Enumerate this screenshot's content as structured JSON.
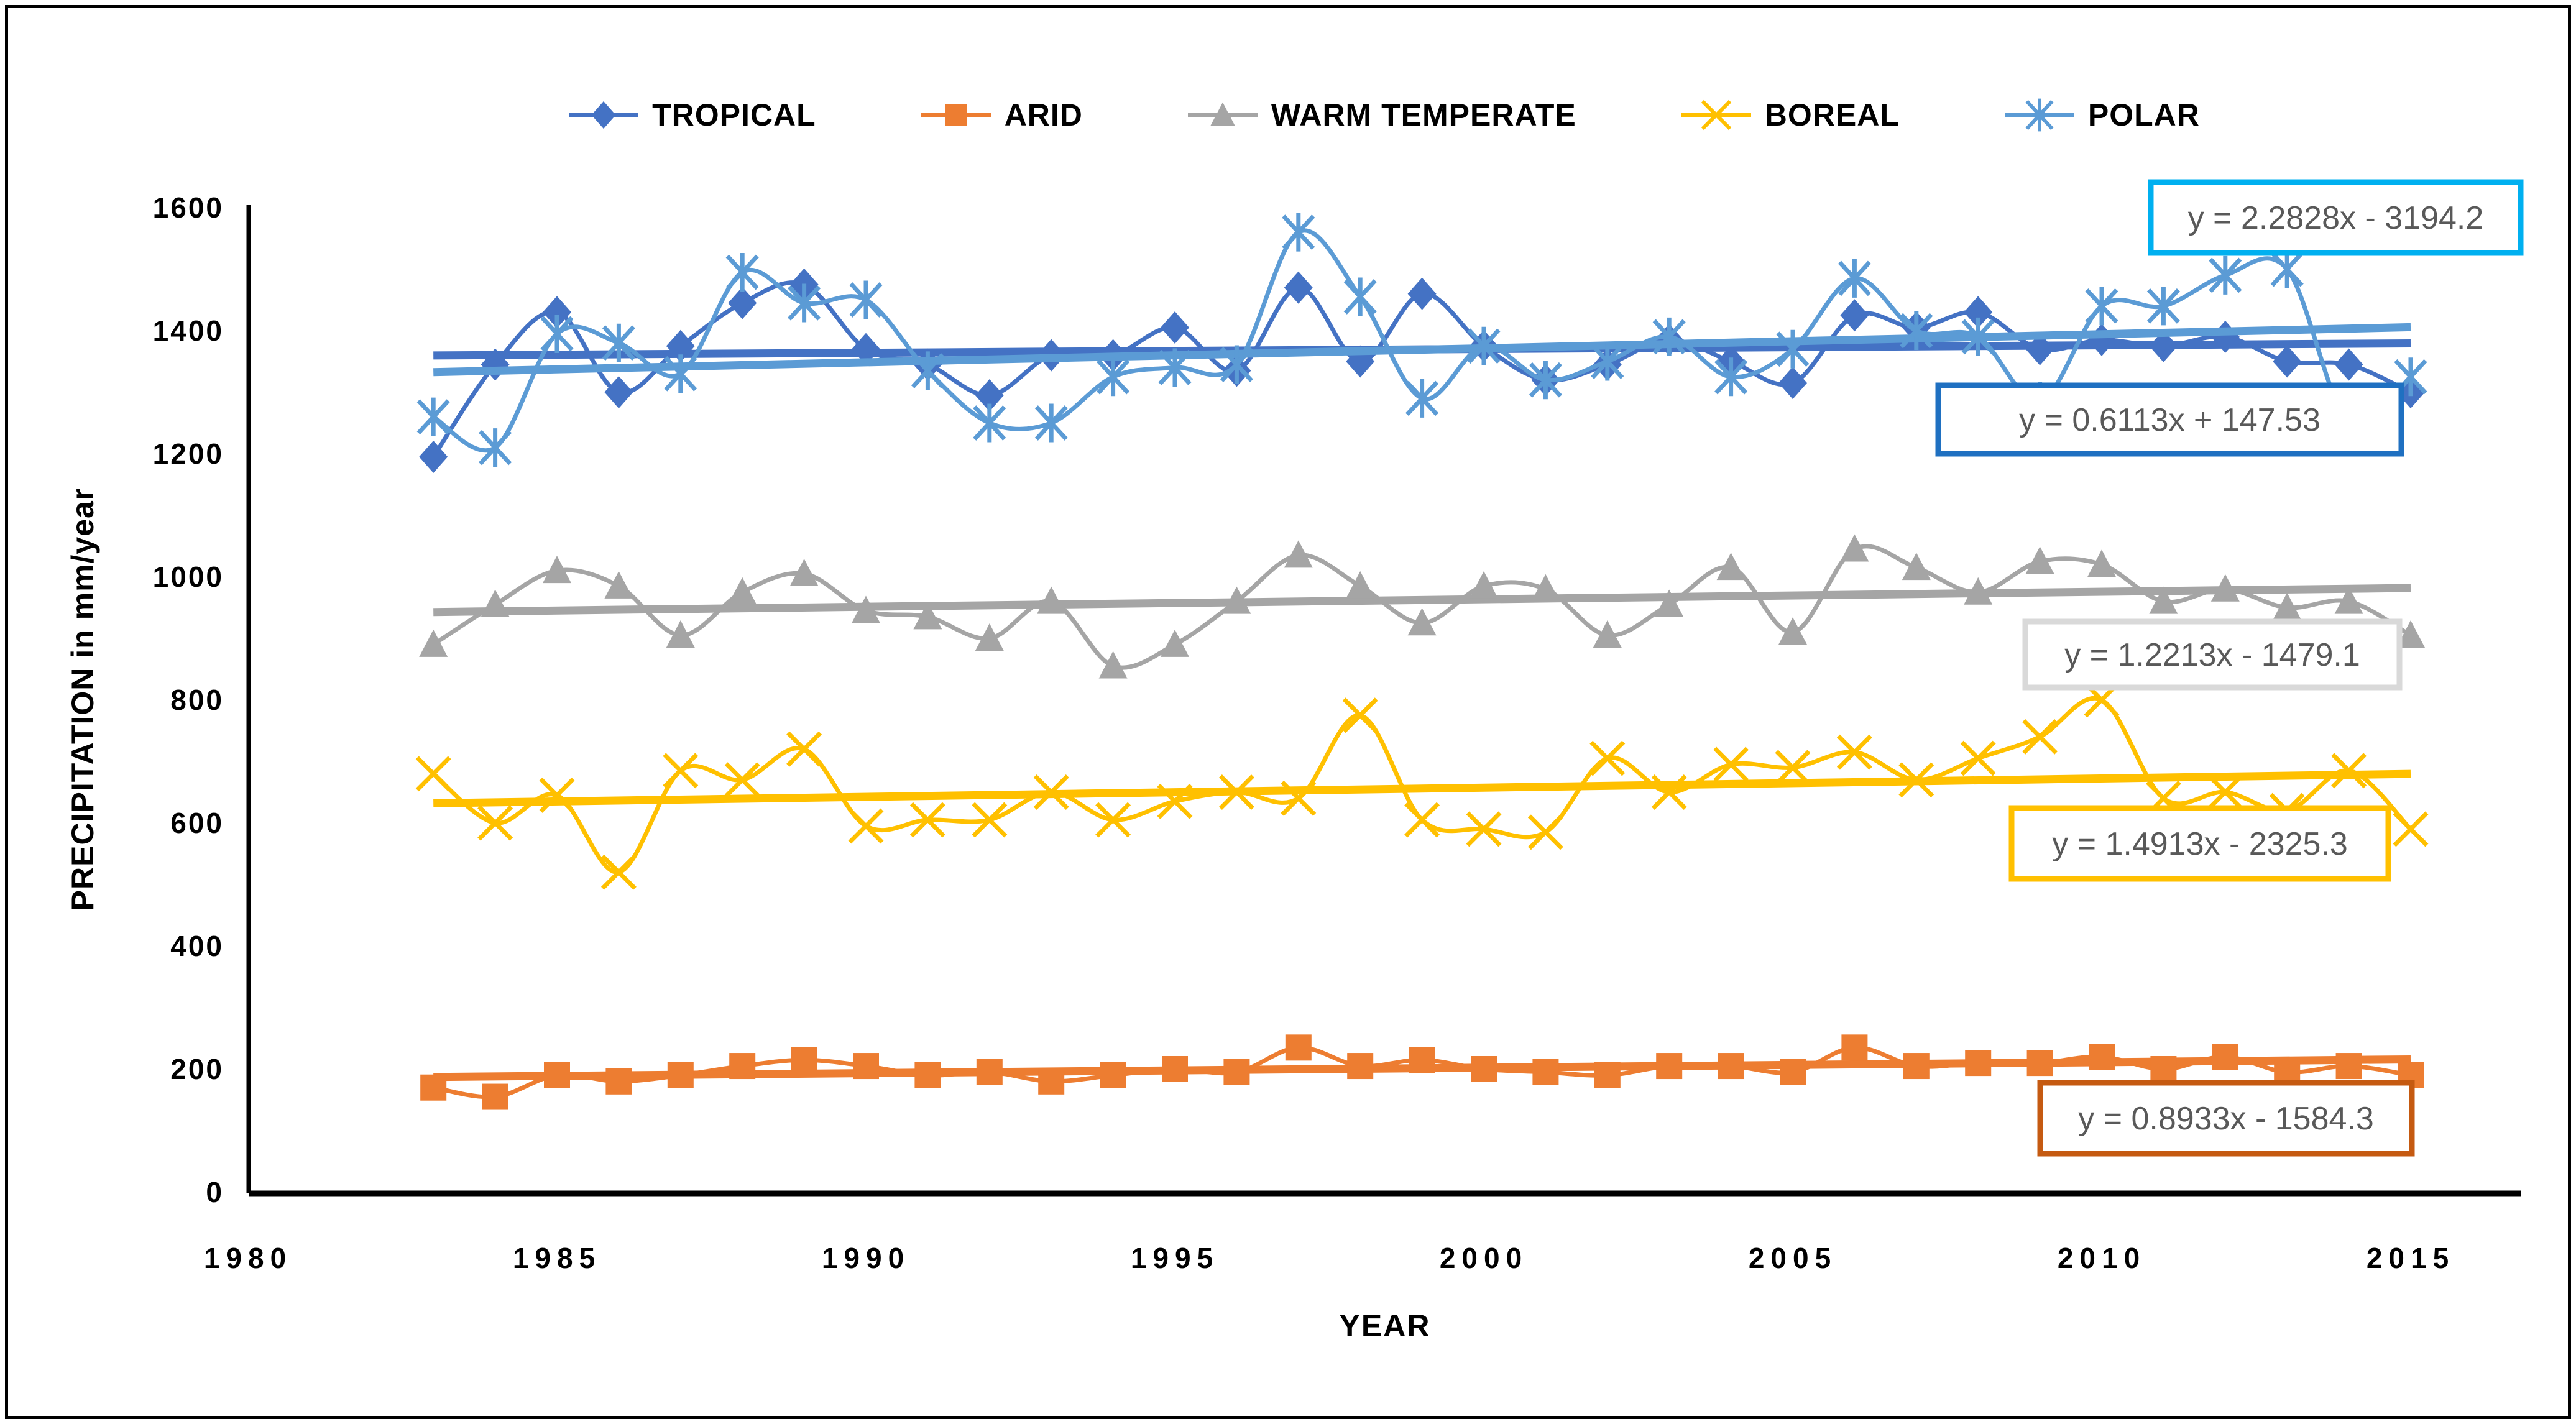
{
  "figure": {
    "background": "#ffffff",
    "border_color": "#000000"
  },
  "axes": {
    "x_title": "YEAR",
    "y_title": "PRECIPITATION in mm/year",
    "x_ticks": [
      1980,
      1985,
      1990,
      1995,
      2000,
      2005,
      2010,
      2015
    ],
    "y_ticks": [
      0,
      200,
      400,
      600,
      800,
      1000,
      1200,
      1400,
      1600
    ],
    "x_range": [
      1980,
      2015
    ],
    "y_range": [
      0,
      1600
    ],
    "grid": false,
    "legend_position": "top"
  },
  "chart_data": {
    "type": "line",
    "title": "",
    "xlabel": "YEAR",
    "ylabel": "PRECIPITATION in mm/year",
    "ylim": [
      0,
      1600
    ],
    "x": [
      1983,
      1984,
      1985,
      1986,
      1987,
      1988,
      1989,
      1990,
      1991,
      1992,
      1993,
      1994,
      1995,
      1996,
      1997,
      1998,
      1999,
      2000,
      2001,
      2002,
      2003,
      2004,
      2005,
      2006,
      2007,
      2008,
      2009,
      2010,
      2011,
      2012,
      2013,
      2014,
      2015
    ],
    "series": [
      {
        "name": "TROPICAL",
        "marker": "diamond",
        "color": "#4472C4",
        "values": [
          1195,
          1345,
          1430,
          1300,
          1375,
          1445,
          1475,
          1370,
          1345,
          1295,
          1360,
          1360,
          1405,
          1335,
          1470,
          1350,
          1460,
          1375,
          1320,
          1345,
          1385,
          1350,
          1315,
          1425,
          1405,
          1430,
          1370,
          1385,
          1375,
          1390,
          1350,
          1345,
          1300
        ],
        "trend": {
          "slope": 0.6113,
          "intercept": 147.53,
          "label": "y = 0.6113x + 147.53",
          "box_color": "#1F70C1",
          "box": [
            3118,
            620,
            745,
            110
          ]
        }
      },
      {
        "name": "ARID",
        "marker": "square",
        "color": "#ED7D31",
        "values": [
          170,
          155,
          190,
          180,
          190,
          205,
          215,
          205,
          190,
          195,
          180,
          190,
          200,
          195,
          235,
          205,
          215,
          200,
          195,
          190,
          205,
          205,
          195,
          235,
          205,
          210,
          210,
          220,
          200,
          220,
          195,
          205,
          190
        ],
        "trend": {
          "slope": 0.8933,
          "intercept": -1584.3,
          "label": "y = 0.8933x - 1584.3",
          "box_color": "#C55A11",
          "box": [
            3282,
            1742,
            598,
            114
          ]
        }
      },
      {
        "name": "WARM TEMPERATE",
        "marker": "triangle",
        "color": "#A5A5A5",
        "values": [
          890,
          955,
          1010,
          985,
          905,
          975,
          1005,
          945,
          935,
          900,
          960,
          855,
          890,
          960,
          1035,
          985,
          925,
          985,
          980,
          905,
          955,
          1015,
          910,
          1045,
          1015,
          975,
          1025,
          1020,
          960,
          980,
          950,
          960,
          905
        ],
        "trend": {
          "slope": 1.2213,
          "intercept": -1479.1,
          "label": "y = 1.2213x - 1479.1",
          "box_color": "#D9D9D9",
          "box": [
            3258,
            1000,
            602,
            106
          ]
        }
      },
      {
        "name": "BOREAL",
        "marker": "x",
        "color": "#FFC000",
        "values": [
          680,
          600,
          645,
          520,
          685,
          670,
          720,
          595,
          605,
          605,
          650,
          605,
          635,
          650,
          640,
          775,
          605,
          590,
          585,
          705,
          650,
          695,
          690,
          715,
          670,
          705,
          740,
          800,
          640,
          650,
          620,
          685,
          590
        ],
        "trend": {
          "slope": 1.4913,
          "intercept": -2325.3,
          "label": "y = 1.4913x - 2325.3",
          "box_color": "#FFC000",
          "box": [
            3236,
            1300,
            606,
            114
          ]
        }
      },
      {
        "name": "POLAR",
        "marker": "asterisk",
        "color": "#5B9BD5",
        "values": [
          1260,
          1210,
          1395,
          1380,
          1330,
          1495,
          1445,
          1450,
          1335,
          1250,
          1250,
          1325,
          1340,
          1345,
          1560,
          1455,
          1290,
          1375,
          1320,
          1350,
          1390,
          1325,
          1370,
          1485,
          1400,
          1390,
          1285,
          1440,
          1440,
          1490,
          1500,
          1250,
          1325
        ],
        "trend": {
          "slope": 2.2828,
          "intercept": -3194.2,
          "label": "y = 2.2828x - 3194.2",
          "box_color": "#00B0F0",
          "box": [
            3460,
            293,
            595,
            114
          ]
        }
      }
    ],
    "equation_text_color": "#595959"
  }
}
